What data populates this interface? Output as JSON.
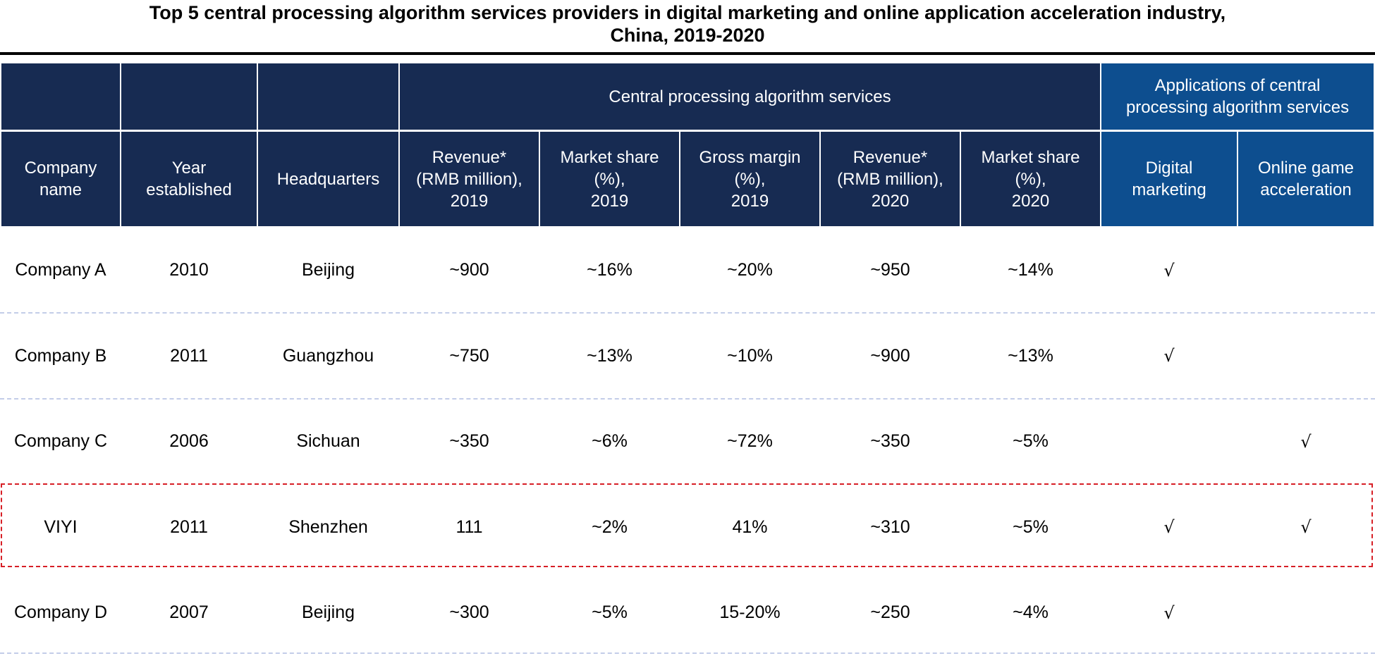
{
  "title": {
    "line1": "Top 5 central processing algorithm services providers in digital marketing and online application acceleration industry,",
    "line2": "China, 2019-2020"
  },
  "header": {
    "group_cpa": "Central processing algorithm services",
    "group_apps": "Applications of central\nprocessing algorithm services",
    "columns": [
      "Company\nname",
      "Year\nestablished",
      "Headquarters",
      "Revenue*\n(RMB million),\n2019",
      "Market share\n(%),\n2019",
      "Gross margin\n(%),\n2019",
      "Revenue*\n(RMB million),\n2020",
      "Market share\n(%),\n2020",
      "Digital\nmarketing",
      "Online game\nacceleration"
    ]
  },
  "rows": [
    {
      "company": "Company A",
      "year": "2010",
      "hq": "Beijing",
      "rev2019": "~900",
      "share2019": "~16%",
      "margin2019": "~20%",
      "rev2020": "~950",
      "share2020": "~14%",
      "digital": "√",
      "game": ""
    },
    {
      "company": "Company B",
      "year": "2011",
      "hq": "Guangzhou",
      "rev2019": "~750",
      "share2019": "~13%",
      "margin2019": "~10%",
      "rev2020": "~900",
      "share2020": "~13%",
      "digital": "√",
      "game": ""
    },
    {
      "company": "Company C",
      "year": "2006",
      "hq": "Sichuan",
      "rev2019": "~350",
      "share2019": "~6%",
      "margin2019": "~72%",
      "rev2020": "~350",
      "share2020": "~5%",
      "digital": "",
      "game": "√"
    },
    {
      "company": "VIYI",
      "year": "2011",
      "hq": "Shenzhen",
      "rev2019": "111",
      "share2019": "~2%",
      "margin2019": "41%",
      "rev2020": "~310",
      "share2020": "~5%",
      "digital": "√",
      "game": "√"
    },
    {
      "company": "Company D",
      "year": "2007",
      "hq": "Beijing",
      "rev2019": "~300",
      "share2019": "~5%",
      "margin2019": "15-20%",
      "rev2020": "~250",
      "share2020": "~4%",
      "digital": "√",
      "game": ""
    }
  ],
  "colors": {
    "header_navy": "#172b52",
    "header_blue": "#0d4e8f",
    "row_separator": "#c3cde8",
    "highlight_border": "#d71f26"
  }
}
